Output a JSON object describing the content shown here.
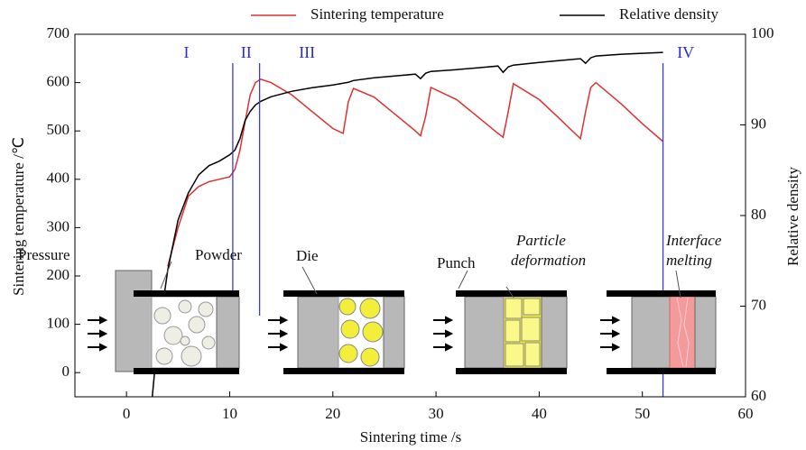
{
  "chart_data": {
    "type": "line",
    "xlabel": "Sintering time /s",
    "ylabel": "Sintering temperature /℃",
    "y2label": "Relative density",
    "xlim": [
      -5,
      60
    ],
    "xticks": [
      0,
      10,
      20,
      30,
      40,
      50,
      60
    ],
    "ylim": [
      -50,
      700
    ],
    "yticks": [
      0,
      100,
      200,
      300,
      400,
      500,
      600,
      700
    ],
    "y2lim": [
      60,
      100
    ],
    "y2ticks": [
      60,
      70,
      80,
      90,
      100
    ],
    "legend": "top",
    "x": [
      2.5,
      3,
      4,
      5,
      6,
      7,
      8,
      9,
      10,
      10.5,
      11,
      11.5,
      12,
      12.5,
      13,
      14,
      16,
      18,
      20,
      21,
      21.5,
      22,
      24,
      26,
      28,
      28.5,
      29,
      29.5,
      32,
      34,
      36,
      36.5,
      37,
      37.5,
      40,
      42,
      44,
      44.5,
      45,
      45.5,
      48,
      50,
      52
    ],
    "series": [
      {
        "name": "Sintering temperature",
        "color": "#e03030",
        "values": [
          null,
          null,
          220,
          300,
          365,
          385,
          395,
          400,
          405,
          420,
          460,
          520,
          575,
          600,
          607,
          600,
          575,
          540,
          505,
          495,
          560,
          588,
          570,
          535,
          500,
          490,
          530,
          590,
          565,
          530,
          495,
          487,
          540,
          598,
          565,
          525,
          484,
          540,
          590,
          600,
          555,
          515,
          478
        ]
      },
      {
        "name": "Relative density",
        "color": "#000000",
        "axis": "y2",
        "values": [
          60,
          66,
          74,
          79.5,
          82.5,
          84.5,
          85.5,
          86,
          86.7,
          87.2,
          88.5,
          90.5,
          91.5,
          92.2,
          92.6,
          93.1,
          93.7,
          94.1,
          94.4,
          94.6,
          94.7,
          94.9,
          95.2,
          95.4,
          95.6,
          95.1,
          95.7,
          95.9,
          96.1,
          96.3,
          96.5,
          95.8,
          96.4,
          96.6,
          96.9,
          97.1,
          97.3,
          96.8,
          97.4,
          97.6,
          97.8,
          97.9,
          98.0
        ]
      }
    ],
    "phase_boundaries": [
      10.3,
      12.9,
      52
    ],
    "phases": [
      "I",
      "II",
      "III",
      "IV"
    ],
    "annotations": {
      "pressure": "Pressure",
      "powder": "Powder",
      "die": "Die",
      "punch": "Punch",
      "deformation": [
        "Particle",
        "deformation"
      ],
      "melting": [
        "Interface",
        "melting"
      ]
    }
  }
}
